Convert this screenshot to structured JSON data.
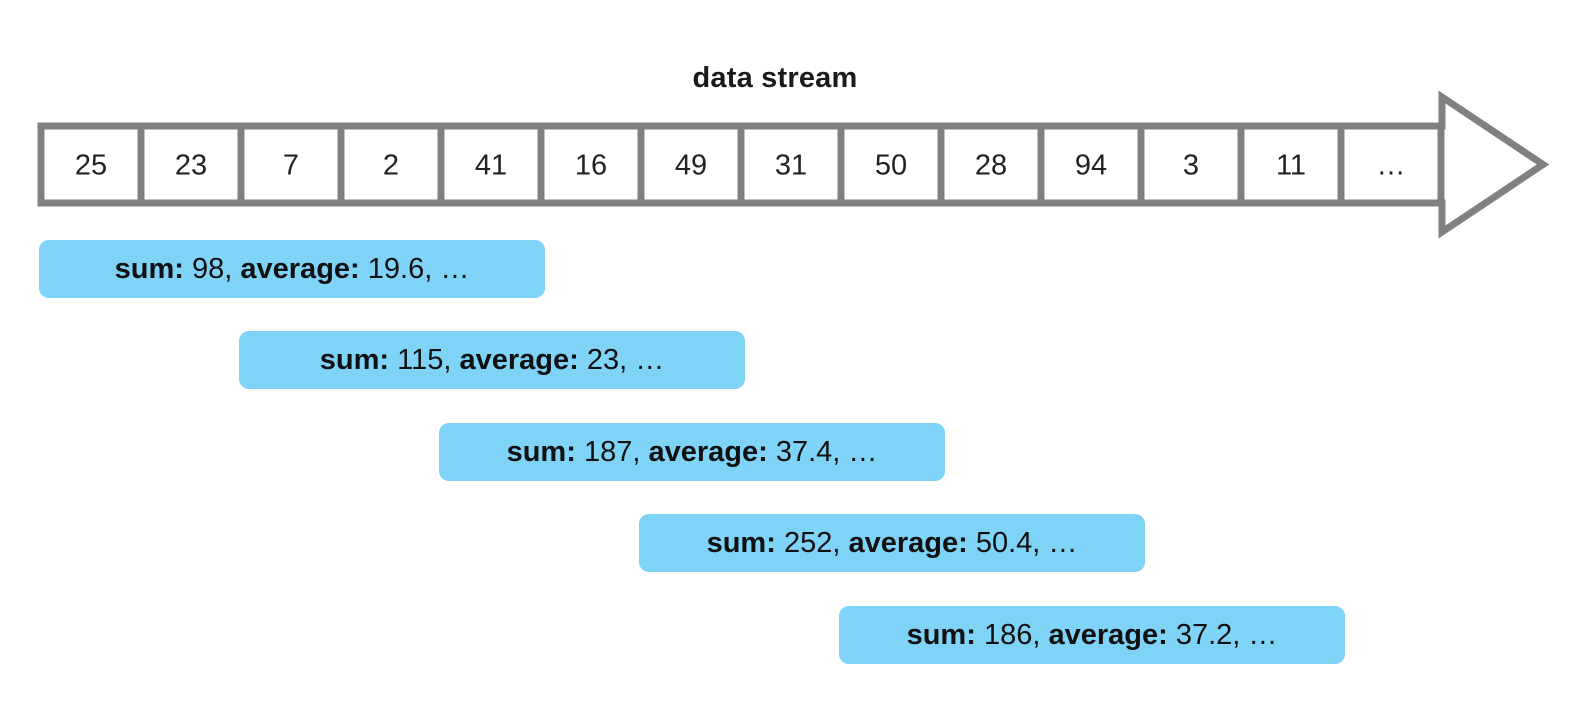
{
  "title": "data stream",
  "stream": {
    "values": [
      "25",
      "23",
      "7",
      "2",
      "41",
      "16",
      "49",
      "31",
      "50",
      "28",
      "94",
      "3",
      "11",
      "..."
    ]
  },
  "windows": [
    {
      "sum_label": "sum:",
      "sum": "98",
      "avg_label": "average:",
      "average": "19.6",
      "trail": "…"
    },
    {
      "sum_label": "sum:",
      "sum": "115",
      "avg_label": "average:",
      "average": "23",
      "trail": "…"
    },
    {
      "sum_label": "sum:",
      "sum": "187",
      "avg_label": "average:",
      "average": "37.4",
      "trail": "…"
    },
    {
      "sum_label": "sum:",
      "sum": "252",
      "avg_label": "average:",
      "average": "50.4",
      "trail": "…"
    },
    {
      "sum_label": "sum:",
      "sum": "186",
      "avg_label": "average:",
      "average": "37.2",
      "trail": "…"
    }
  ],
  "colors": {
    "arrow_outline": "#808080",
    "window_fill": "#7fd3f7"
  }
}
